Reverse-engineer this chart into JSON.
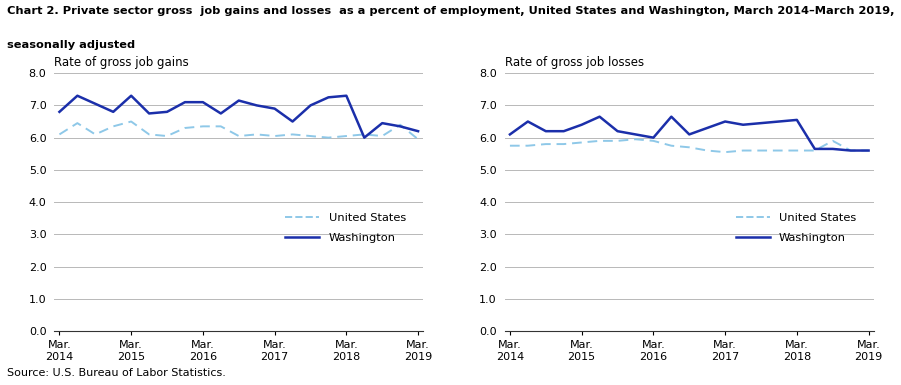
{
  "title_line1": "Chart 2. Private sector gross  job gains and losses  as a percent of employment, United States and Washington, March 2014–March 2019,",
  "title_line2": "seasonally adjusted",
  "left_panel_title": "Rate of gross job gains",
  "right_panel_title": "Rate of gross job losses",
  "x_labels": [
    "Mar.\n2014",
    "Mar.\n2015",
    "Mar.\n2016",
    "Mar.\n2017",
    "Mar.\n2018",
    "Mar.\n2019"
  ],
  "x_positions": [
    0,
    4,
    8,
    12,
    16,
    20
  ],
  "gains_us": [
    6.1,
    6.45,
    6.1,
    6.35,
    6.5,
    6.1,
    6.05,
    6.3,
    6.35,
    6.35,
    6.05,
    6.1,
    6.05,
    6.1,
    6.05,
    6.0,
    6.05,
    6.1,
    6.05,
    6.4,
    5.95
  ],
  "gains_wa": [
    6.8,
    7.3,
    7.05,
    6.8,
    7.3,
    6.75,
    6.8,
    7.1,
    7.1,
    6.75,
    7.15,
    7.0,
    6.9,
    6.5,
    7.0,
    7.25,
    7.3,
    6.0,
    6.45,
    6.35,
    6.2
  ],
  "losses_us": [
    5.75,
    5.75,
    5.8,
    5.8,
    5.85,
    5.9,
    5.9,
    5.95,
    5.9,
    5.75,
    5.7,
    5.6,
    5.55,
    5.6,
    5.6,
    5.6,
    5.6,
    5.6,
    5.9,
    5.6,
    5.6
  ],
  "losses_wa": [
    6.1,
    6.5,
    6.2,
    6.2,
    6.4,
    6.65,
    6.2,
    6.1,
    6.0,
    6.65,
    6.1,
    6.3,
    6.5,
    6.4,
    6.45,
    6.5,
    6.55,
    5.65,
    5.65,
    5.6,
    5.6
  ],
  "us_color": "#8ec8e8",
  "wa_color": "#1b2faa",
  "ylim": [
    0.0,
    8.0
  ],
  "yticks": [
    0.0,
    1.0,
    2.0,
    3.0,
    4.0,
    5.0,
    6.0,
    7.0,
    8.0
  ],
  "source": "Source: U.S. Bureau of Labor Statistics.",
  "legend_us": "United States",
  "legend_wa": "Washington"
}
